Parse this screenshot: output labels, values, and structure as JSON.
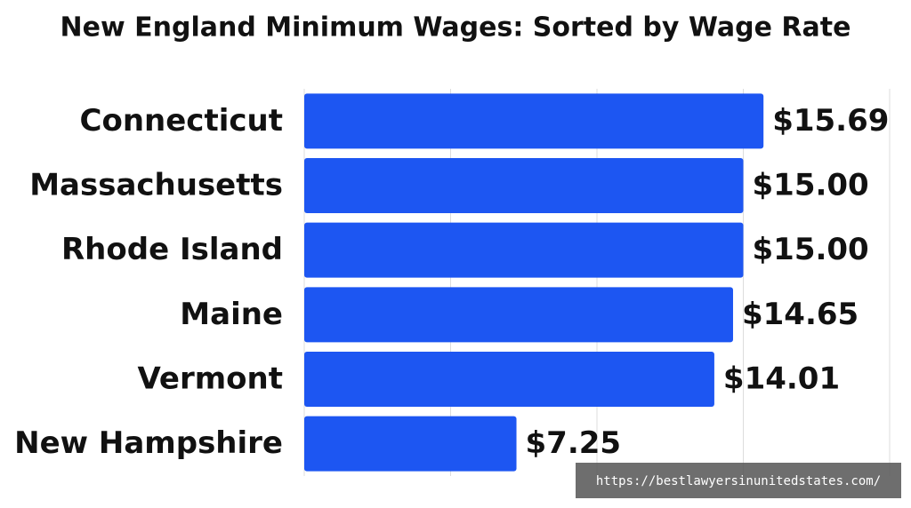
{
  "chart_data": {
    "type": "bar",
    "orientation": "horizontal",
    "title": "New England Minimum Wages: Sorted by Wage Rate",
    "categories": [
      "Connecticut",
      "Massachusetts",
      "Rhode Island",
      "Maine",
      "Vermont",
      "New Hampshire"
    ],
    "values": [
      15.69,
      15.0,
      15.0,
      14.65,
      14.01,
      7.25
    ],
    "value_labels": [
      "$15.69",
      "$15.00",
      "$15.00",
      "$14.65",
      "$14.01",
      "$7.25"
    ],
    "color": "#1d56f2",
    "xlim": [
      0,
      20
    ],
    "xticks": [
      0,
      5,
      10,
      15,
      20
    ],
    "grid": true,
    "annotation": "https://bestlawyersinunitedstates.com/"
  }
}
